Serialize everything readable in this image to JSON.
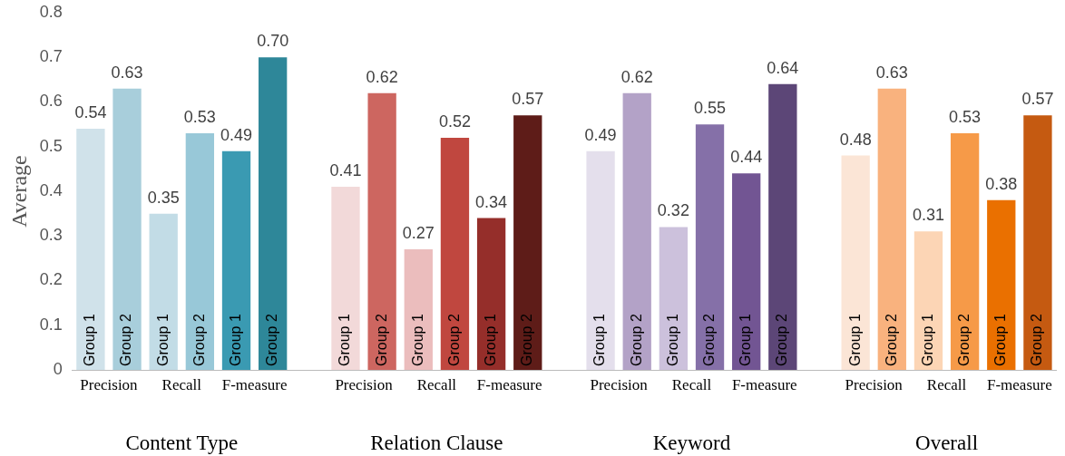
{
  "chart_data": {
    "type": "bar",
    "ylabel": "Average",
    "categories": [
      "Group 1",
      "Group 2",
      "Group 1",
      "Group 2",
      "Group 1",
      "Group 2",
      null,
      "Group 1",
      "Group 2",
      "Group 1",
      "Group 2",
      "Group 1",
      "Group 2",
      null,
      "Group 1",
      "Group 2",
      "Group 1",
      "Group 2",
      "Group 1",
      "Group 2",
      null,
      "Group 1",
      "Group 2",
      "Group 1",
      "Group 2",
      "Group 1",
      "Group 2"
    ],
    "values": [
      0.54,
      0.63,
      0.35,
      0.53,
      0.49,
      0.7,
      null,
      0.41,
      0.62,
      0.27,
      0.52,
      0.34,
      0.57,
      null,
      0.49,
      0.62,
      0.32,
      0.55,
      0.44,
      0.64,
      null,
      0.48,
      0.63,
      0.31,
      0.53,
      0.38,
      0.57
    ],
    "value_labels": [
      "0.54",
      "0.63",
      "0.35",
      "0.53",
      "0.49",
      "0.70",
      null,
      "0.41",
      "0.62",
      "0.27",
      "0.52",
      "0.34",
      "0.57",
      null,
      "0.49",
      "0.62",
      "0.32",
      "0.55",
      "0.44",
      "0.64",
      null,
      "0.48",
      "0.63",
      "0.31",
      "0.53",
      "0.38",
      "0.57"
    ],
    "colors": [
      "#d0e2ea",
      "#a8cedb",
      "#c2dce6",
      "#98c8d8",
      "#3a9ab2",
      "#2e8799",
      "#ffffff",
      "#f2d9d9",
      "#cd6660",
      "#ebbdbd",
      "#c0473f",
      "#952e2a",
      "#5e1c18",
      "#ffffff",
      "#e4dfec",
      "#b3a2c7",
      "#ccc1dc",
      "#8570a8",
      "#725593",
      "#5c4677",
      "#ffffff",
      "#fbe5d6",
      "#f9b27e",
      "#fcd5b5",
      "#f69a48",
      "#ea7000",
      "#c55a11"
    ],
    "ylim": [
      0,
      0.8
    ],
    "yticks": [
      0,
      0.1,
      0.2,
      0.3,
      0.4,
      0.5,
      0.6,
      0.7,
      0.8
    ],
    "grid": false,
    "legend": false,
    "annotations": [
      "Precision",
      "Recall",
      "F-measure",
      "Precision",
      "Recall",
      "F-measure",
      "Precision",
      "Recall",
      "F-measure",
      "Precision",
      "Recall",
      "F-measure",
      "Content Type",
      "Relation Clause",
      "Keyword",
      "Overall"
    ]
  }
}
